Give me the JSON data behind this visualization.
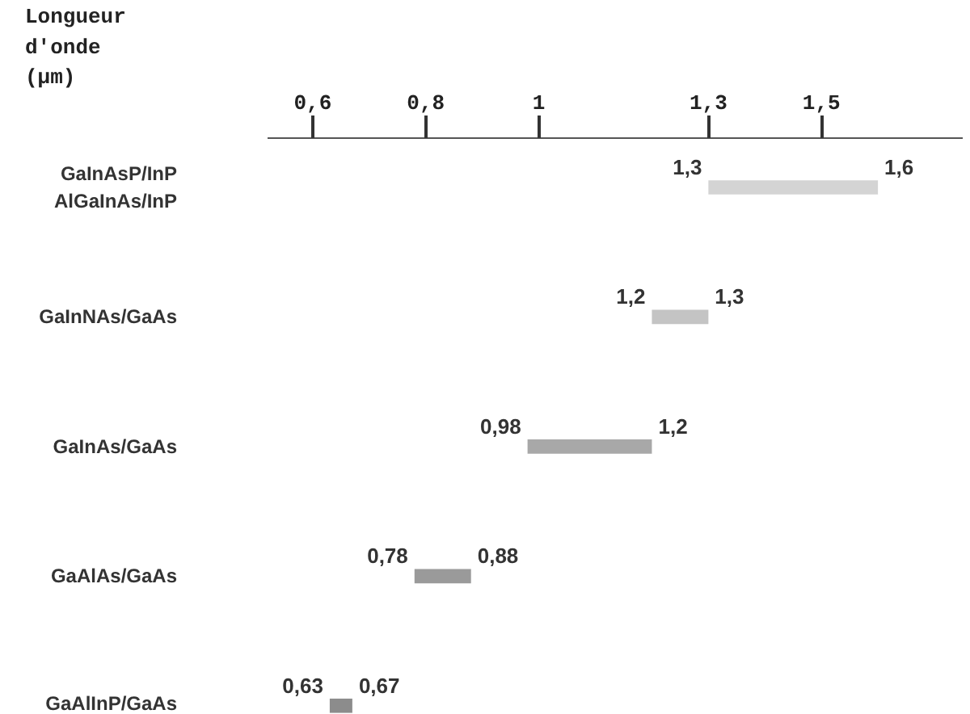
{
  "chart_data": {
    "type": "bar",
    "orientation": "horizontal",
    "xlabel": "Longueur d'onde (µm)",
    "categories": [
      "GaInAsP/InP\nAlGaInAs/InP",
      "GaInNAs/GaAs",
      "GaInAs/GaAs",
      "GaAlAs/GaAs",
      "GaAlInP/GaAs"
    ],
    "base": [
      1.3,
      1.2,
      0.98,
      0.78,
      0.63
    ],
    "values": [
      0.3,
      0.1,
      0.22,
      0.1,
      0.04
    ],
    "colors": [
      "#d4d4d4",
      "#c4c4c4",
      "#a8a8a8",
      "#9a9a9a",
      "#8c8c8c"
    ],
    "xlim": [
      0.52,
      1.75
    ],
    "xticks": [
      {
        "value": 0.6,
        "label": "0,6"
      },
      {
        "value": 0.8,
        "label": "0,8"
      },
      {
        "value": 1,
        "label": "1"
      },
      {
        "value": 1.3,
        "label": "1,3"
      },
      {
        "value": 1.5,
        "label": "1,5"
      }
    ],
    "annotations": [
      "1,3",
      "1,6",
      "1,2",
      "1,3",
      "0,98",
      "1,2",
      "0,78",
      "0,88",
      "0,63",
      "0,67"
    ],
    "grid": false
  }
}
